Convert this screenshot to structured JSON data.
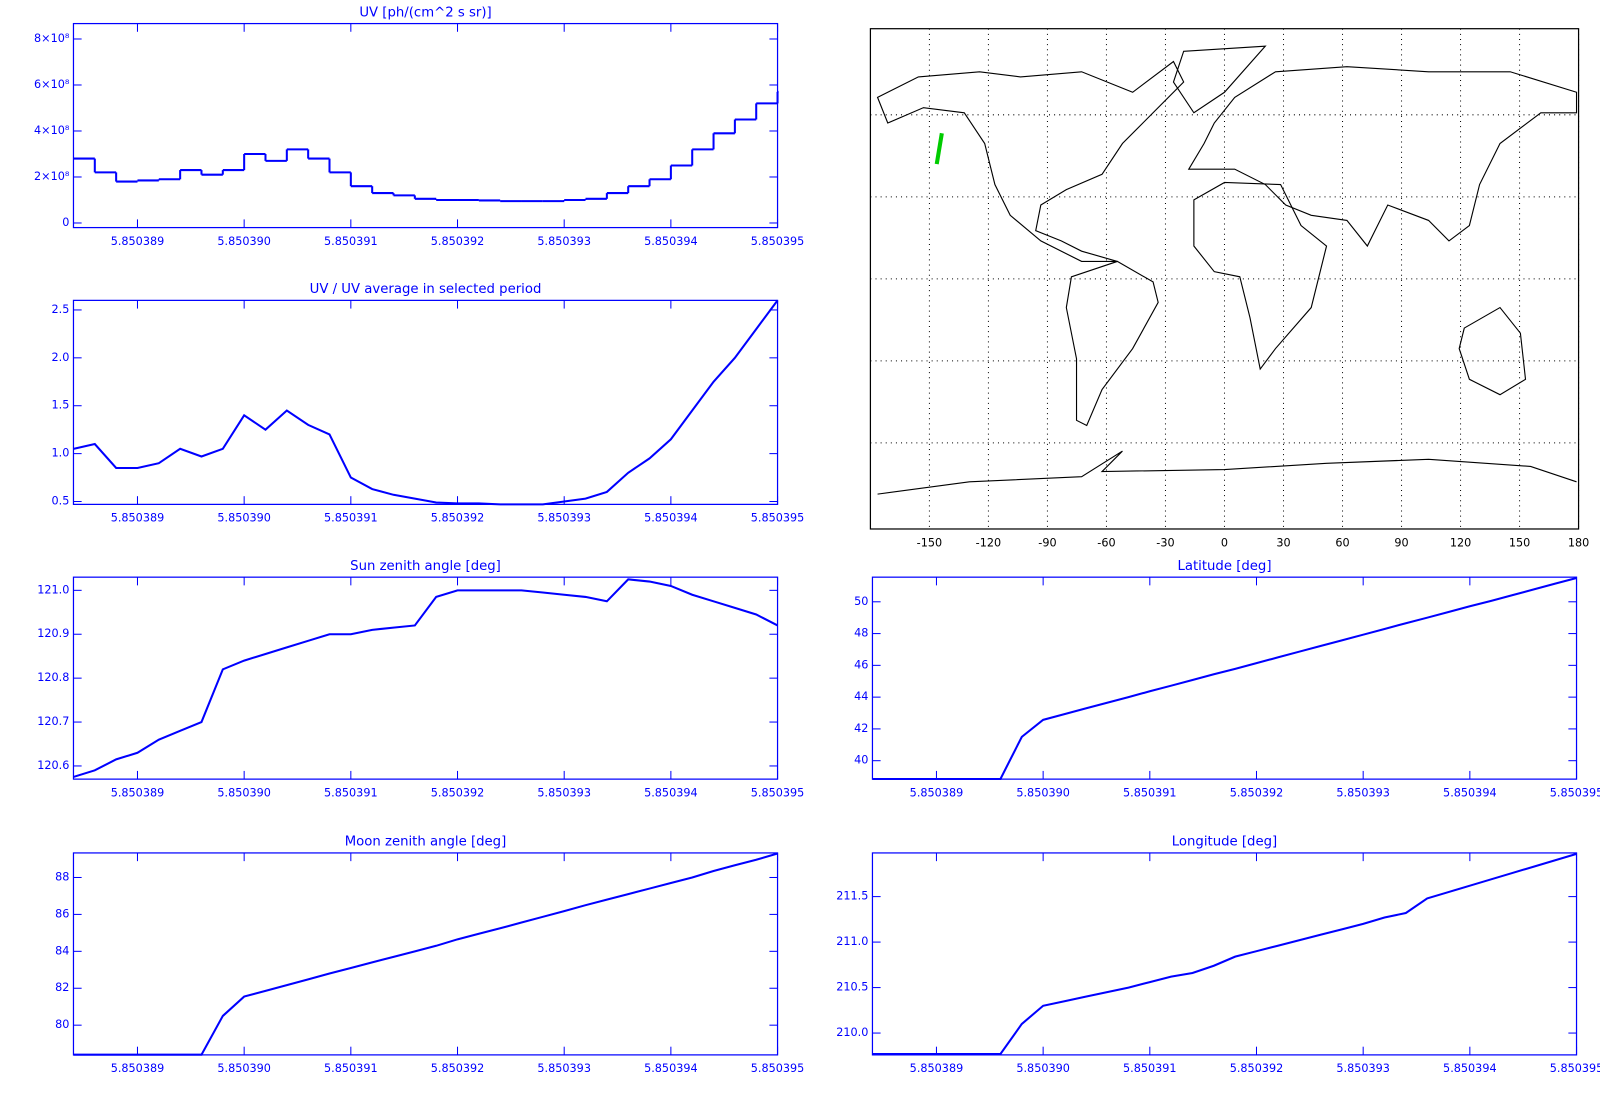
{
  "chart_data": [
    {
      "type": "step",
      "title": "UV [ph/(cm^2 s sr)]",
      "axis_color": "#0000ff",
      "x": [
        5.8503884,
        5.8503886,
        5.8503888,
        5.850389,
        5.8503892,
        5.8503894,
        5.8503896,
        5.8503898,
        5.85039,
        5.8503902,
        5.8503904,
        5.8503906,
        5.8503908,
        5.850391,
        5.8503912,
        5.8503914,
        5.8503916,
        5.8503918,
        5.850392,
        5.8503922,
        5.8503924,
        5.8503926,
        5.8503928,
        5.850393,
        5.8503932,
        5.8503934,
        5.8503936,
        5.8503938,
        5.850394,
        5.8503942,
        5.8503944,
        5.8503946,
        5.8503948,
        5.850395
      ],
      "series": [
        {
          "color": "#0000ff",
          "values": [
            280000000,
            220000000,
            180000000,
            185000000,
            190000000,
            230000000,
            210000000,
            230000000,
            300000000,
            270000000,
            320000000,
            280000000,
            220000000,
            160000000,
            130000000,
            120000000,
            105000000,
            100000000,
            100000000,
            98000000,
            95000000,
            95000000,
            95000000,
            100000000,
            105000000,
            130000000,
            160000000,
            190000000,
            250000000,
            320000000,
            390000000,
            450000000,
            520000000,
            570000000
          ]
        }
      ],
      "xlim": [
        5.8503884,
        5.850395
      ],
      "xticks": [
        5.850389,
        {
          "value": 5.85039,
          "label": "5.850390"
        },
        5.850391,
        5.850392,
        5.850393,
        5.850394,
        5.850395
      ],
      "ylim": [
        -20000000,
        867000000
      ],
      "yticks": [
        0,
        {
          "value": 200000000,
          "label": "2×10⁸"
        },
        {
          "value": 400000000,
          "label": "4×10⁸"
        },
        {
          "value": 600000000,
          "label": "6×10⁸"
        },
        {
          "value": 800000000,
          "label": "8×10⁸"
        }
      ]
    },
    {
      "type": "map",
      "axis_color": "#000000",
      "grid": true,
      "ytick_labels": false,
      "xlim": [
        -180,
        180
      ],
      "xticks": [
        -150,
        -120,
        -90,
        -60,
        -30,
        0,
        30,
        60,
        90,
        120,
        150,
        180
      ],
      "ylim": [
        -91.5,
        91.5
      ],
      "yticks": [
        -60,
        -30,
        0,
        30,
        60
      ]
    },
    {
      "type": "line",
      "title": "UV / UV average in selected period",
      "axis_color": "#0000ff",
      "x": [
        5.8503884,
        5.8503886,
        5.8503888,
        5.850389,
        5.8503892,
        5.8503894,
        5.8503896,
        5.8503898,
        5.85039,
        5.8503902,
        5.8503904,
        5.8503906,
        5.8503908,
        5.850391,
        5.8503912,
        5.8503914,
        5.8503916,
        5.8503918,
        5.850392,
        5.8503922,
        5.8503924,
        5.8503926,
        5.8503928,
        5.850393,
        5.8503932,
        5.8503934,
        5.8503936,
        5.8503938,
        5.850394,
        5.8503942,
        5.8503944,
        5.8503946,
        5.8503948,
        5.850395
      ],
      "series": [
        {
          "color": "#0000ff",
          "values": [
            1.05,
            1.1,
            0.85,
            0.85,
            0.9,
            1.05,
            0.97,
            1.05,
            1.4,
            1.25,
            1.45,
            1.3,
            1.2,
            0.75,
            0.63,
            0.57,
            0.53,
            0.49,
            0.48,
            0.48,
            0.47,
            0.47,
            0.47,
            0.5,
            0.53,
            0.6,
            0.8,
            0.95,
            1.15,
            1.45,
            1.75,
            2.0,
            2.3,
            2.6
          ]
        }
      ],
      "xlim": [
        5.8503884,
        5.850395
      ],
      "xticks": [
        5.850389,
        {
          "value": 5.85039,
          "label": "5.850390"
        },
        5.850391,
        5.850392,
        5.850393,
        5.850394,
        5.850395
      ],
      "ylim": [
        0.47,
        2.6
      ],
      "yticks": [
        0.5,
        {
          "value": 1,
          "label": "1.0"
        },
        1.5,
        {
          "value": 2,
          "label": "2.0"
        },
        2.5
      ]
    },
    {
      "type": "line",
      "title": "Sun zenith angle [deg]",
      "axis_color": "#0000ff",
      "x": [
        5.8503884,
        5.8503886,
        5.8503888,
        5.850389,
        5.8503892,
        5.8503894,
        5.8503896,
        5.8503898,
        5.85039,
        5.8503902,
        5.8503904,
        5.8503906,
        5.8503908,
        5.850391,
        5.8503912,
        5.8503914,
        5.8503916,
        5.8503918,
        5.850392,
        5.8503922,
        5.8503924,
        5.8503926,
        5.8503928,
        5.850393,
        5.8503932,
        5.8503934,
        5.8503936,
        5.8503938,
        5.850394,
        5.8503942,
        5.8503944,
        5.8503946,
        5.8503948,
        5.850395
      ],
      "series": [
        {
          "color": "#0000ff",
          "values": [
            120.575,
            120.59,
            120.615,
            120.63,
            120.66,
            120.68,
            120.7,
            120.82,
            120.84,
            120.855,
            120.87,
            120.885,
            120.9,
            120.9,
            120.91,
            120.915,
            120.92,
            120.985,
            121.0,
            121.0,
            121.0,
            121.0,
            120.995,
            120.99,
            120.985,
            120.975,
            121.025,
            121.02,
            121.01,
            120.99,
            120.975,
            120.96,
            120.945,
            120.92
          ]
        }
      ],
      "xlim": [
        5.8503884,
        5.850395
      ],
      "xticks": [
        5.850389,
        {
          "value": 5.85039,
          "label": "5.850390"
        },
        5.850391,
        5.850392,
        5.850393,
        5.850394,
        5.850395
      ],
      "ylim": [
        120.57,
        121.03
      ],
      "yticks": [
        120.6,
        120.7,
        120.8,
        120.9,
        {
          "value": 121,
          "label": "121.0"
        }
      ]
    },
    {
      "type": "line",
      "title": "Latitude [deg]",
      "axis_color": "#0000ff",
      "x": [
        5.8503884,
        5.8503886,
        5.8503888,
        5.850389,
        5.8503892,
        5.8503894,
        5.8503896,
        5.8503898,
        5.85039,
        5.8503902,
        5.8503904,
        5.8503906,
        5.8503908,
        5.850391,
        5.8503912,
        5.8503914,
        5.8503916,
        5.8503918,
        5.850392,
        5.8503922,
        5.8503924,
        5.8503926,
        5.8503928,
        5.850393,
        5.8503932,
        5.8503934,
        5.8503936,
        5.8503938,
        5.850394,
        5.8503942,
        5.8503944,
        5.8503946,
        5.8503948,
        5.850395
      ],
      "series": [
        {
          "color": "#0000ff",
          "values": [
            38.85,
            38.85,
            38.85,
            38.85,
            38.85,
            38.85,
            38.85,
            41.5,
            42.57,
            42.93,
            43.29,
            43.65,
            44.0,
            44.37,
            44.72,
            45.08,
            45.44,
            45.78,
            46.14,
            46.5,
            46.86,
            47.22,
            47.57,
            47.93,
            48.29,
            48.65,
            49.0,
            49.36,
            49.72,
            50.06,
            50.42,
            50.78,
            51.14,
            51.5
          ]
        }
      ],
      "xlim": [
        5.8503884,
        5.850395
      ],
      "xticks": [
        5.850389,
        {
          "value": 5.85039,
          "label": "5.850390"
        },
        5.850391,
        5.850392,
        5.850393,
        5.850394,
        5.850395
      ],
      "ylim": [
        38.84,
        51.55
      ],
      "yticks": [
        40,
        42,
        44,
        46,
        48,
        50
      ]
    },
    {
      "type": "line",
      "title": "Moon zenith angle [deg]",
      "axis_color": "#0000ff",
      "x": [
        5.8503884,
        5.8503886,
        5.8503888,
        5.850389,
        5.8503892,
        5.8503894,
        5.8503896,
        5.8503898,
        5.85039,
        5.8503902,
        5.8503904,
        5.8503906,
        5.8503908,
        5.850391,
        5.8503912,
        5.8503914,
        5.8503916,
        5.8503918,
        5.850392,
        5.8503922,
        5.8503924,
        5.8503926,
        5.8503928,
        5.850393,
        5.8503932,
        5.8503934,
        5.8503936,
        5.8503938,
        5.850394,
        5.8503942,
        5.8503944,
        5.8503946,
        5.8503948,
        5.850395
      ],
      "series": [
        {
          "color": "#0000ff",
          "values": [
            78.4,
            78.4,
            78.4,
            78.4,
            78.4,
            78.4,
            78.4,
            80.5,
            81.55,
            81.86,
            82.17,
            82.48,
            82.8,
            83.1,
            83.4,
            83.7,
            84.0,
            84.3,
            84.65,
            84.95,
            85.25,
            85.56,
            85.87,
            86.18,
            86.5,
            86.8,
            87.1,
            87.4,
            87.7,
            88.0,
            88.35,
            88.66,
            88.96,
            89.3
          ]
        }
      ],
      "xlim": [
        5.8503884,
        5.850395
      ],
      "xticks": [
        5.850389,
        {
          "value": 5.85039,
          "label": "5.850390"
        },
        5.850391,
        5.850392,
        5.850393,
        5.850394,
        5.850395
      ],
      "ylim": [
        78.39,
        89.33
      ],
      "yticks": [
        80,
        82,
        84,
        86,
        88
      ]
    },
    {
      "type": "line",
      "title": "Longitude [deg]",
      "axis_color": "#0000ff",
      "x": [
        5.8503884,
        5.8503886,
        5.8503888,
        5.850389,
        5.8503892,
        5.8503894,
        5.8503896,
        5.8503898,
        5.85039,
        5.8503902,
        5.8503904,
        5.8503906,
        5.8503908,
        5.850391,
        5.8503912,
        5.8503914,
        5.8503916,
        5.8503918,
        5.850392,
        5.8503922,
        5.8503924,
        5.8503926,
        5.8503928,
        5.850393,
        5.8503932,
        5.8503934,
        5.8503936,
        5.8503938,
        5.850394,
        5.8503942,
        5.8503944,
        5.8503946,
        5.8503948,
        5.850395
      ],
      "series": [
        {
          "color": "#0000ff",
          "values": [
            209.77,
            209.77,
            209.77,
            209.77,
            209.77,
            209.77,
            209.77,
            210.1,
            210.3,
            210.35,
            210.4,
            210.45,
            210.5,
            210.56,
            210.62,
            210.66,
            210.74,
            210.84,
            210.9,
            210.96,
            211.02,
            211.08,
            211.14,
            211.2,
            211.27,
            211.32,
            211.48,
            211.55,
            211.62,
            211.69,
            211.76,
            211.83,
            211.9,
            211.97
          ]
        }
      ],
      "xlim": [
        5.8503884,
        5.850395
      ],
      "xticks": [
        5.850389,
        {
          "value": 5.85039,
          "label": "5.850390"
        },
        5.850391,
        5.850392,
        5.850393,
        5.850394,
        5.850395
      ],
      "ylim": [
        209.76,
        211.98
      ],
      "yticks": [
        {
          "value": 210,
          "label": "210.0"
        },
        210.5,
        {
          "value": 211,
          "label": "211.0"
        },
        211.5
      ]
    }
  ]
}
